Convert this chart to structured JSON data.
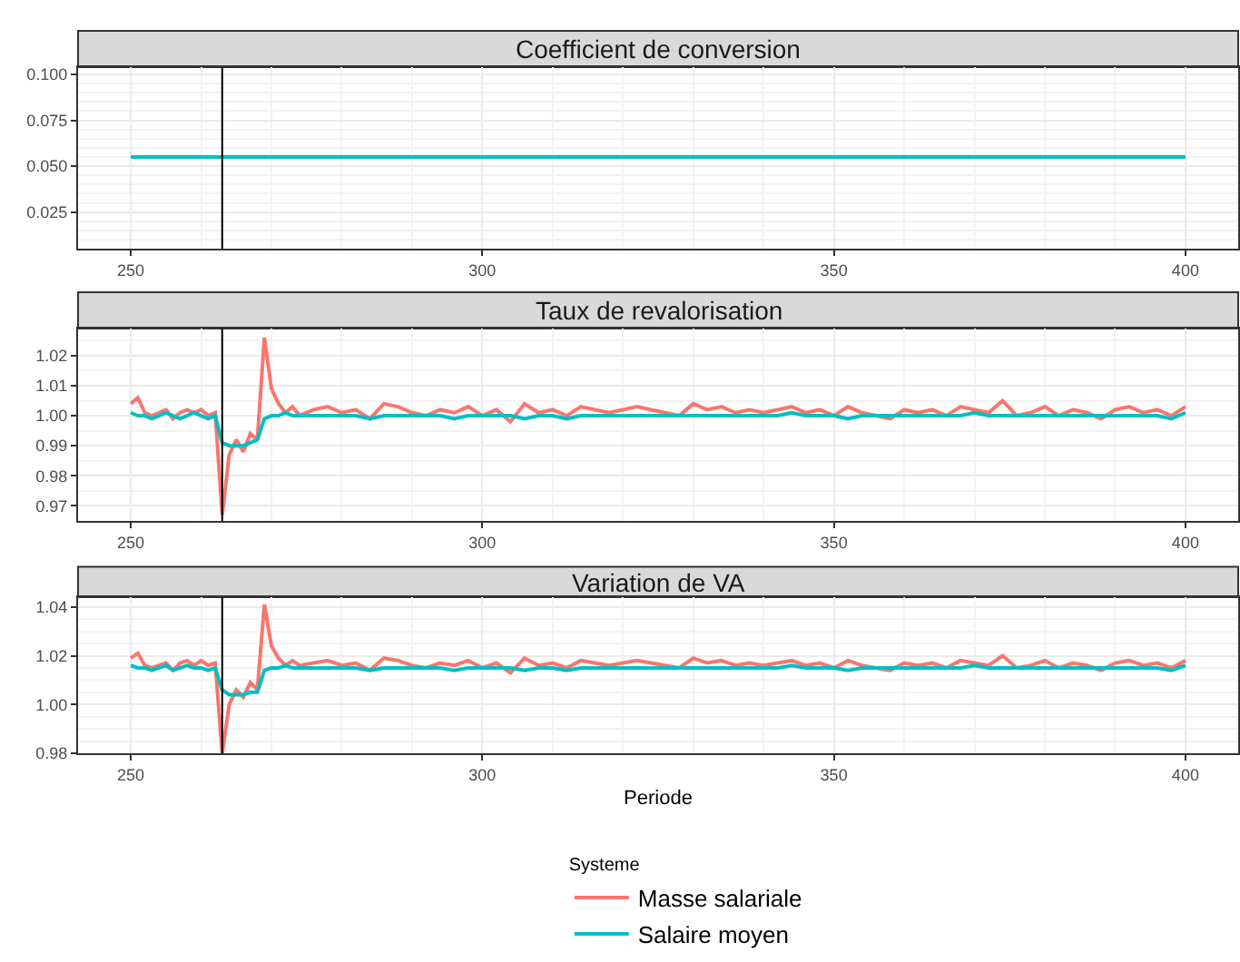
{
  "chart_data": [
    {
      "type": "line",
      "title": "Coefficient de conversion",
      "x": [
        250,
        400
      ],
      "xlim": [
        242.5,
        407.5
      ],
      "xticks": [
        250,
        300,
        350,
        400
      ],
      "ylim": [
        0.005,
        0.104
      ],
      "yticks": [
        {
          "value": 0.025,
          "label": "0.025"
        },
        {
          "value": 0.05,
          "label": "0.050"
        },
        {
          "value": 0.075,
          "label": "0.075"
        },
        {
          "value": 0.1,
          "label": "0.100"
        }
      ],
      "grid": true,
      "legend": false,
      "ref_lines": [
        {
          "axis": "x",
          "value": 263,
          "color": "#000000"
        }
      ],
      "series": [
        {
          "color": "#00bfc4",
          "values": [
            0.055,
            0.055
          ]
        }
      ]
    },
    {
      "type": "line",
      "title": "Taux de revalorisation",
      "x": [
        250,
        251,
        252,
        253,
        254,
        255,
        256,
        257,
        258,
        259,
        260,
        261,
        262,
        263,
        264,
        265,
        266,
        267,
        268,
        269,
        270,
        271,
        272,
        273,
        274,
        276,
        278,
        280,
        282,
        284,
        286,
        288,
        290,
        292,
        294,
        296,
        298,
        300,
        302,
        304,
        306,
        308,
        310,
        312,
        314,
        316,
        318,
        320,
        322,
        324,
        326,
        328,
        330,
        332,
        334,
        336,
        338,
        340,
        342,
        344,
        346,
        348,
        350,
        352,
        354,
        356,
        358,
        360,
        362,
        364,
        366,
        368,
        370,
        372,
        374,
        376,
        378,
        380,
        382,
        384,
        386,
        388,
        390,
        392,
        394,
        396,
        398,
        400
      ],
      "xlim": [
        242.5,
        407.5
      ],
      "xticks": [
        250,
        300,
        350,
        400
      ],
      "ylim": [
        0.965,
        1.029
      ],
      "yticks": [
        {
          "value": 0.97,
          "label": "0.97"
        },
        {
          "value": 0.98,
          "label": "0.98"
        },
        {
          "value": 0.99,
          "label": "0.99"
        },
        {
          "value": 1,
          "label": "1.00"
        },
        {
          "value": 1.01,
          "label": "1.01"
        },
        {
          "value": 1.02,
          "label": "1.02"
        }
      ],
      "grid": true,
      "legend": false,
      "ref_lines": [
        {
          "axis": "x",
          "value": 263,
          "color": "#000000"
        }
      ],
      "series": [
        {
          "color": "#f8766d",
          "values": [
            1.004,
            1.006,
            1.001,
            1.0,
            1.001,
            1.002,
            0.999,
            1.001,
            1.002,
            1.001,
            1.002,
            1.0,
            1.001,
            0.967,
            0.987,
            0.992,
            0.988,
            0.994,
            0.992,
            1.026,
            1.009,
            1.004,
            1.001,
            1.003,
            1.0,
            1.002,
            1.003,
            1.001,
            1.002,
            0.999,
            1.004,
            1.003,
            1.001,
            1.0,
            1.002,
            1.001,
            1.003,
            1.0,
            1.002,
            0.998,
            1.004,
            1.001,
            1.002,
            1.0,
            1.003,
            1.002,
            1.001,
            1.002,
            1.003,
            1.002,
            1.001,
            1.0,
            1.004,
            1.002,
            1.003,
            1.001,
            1.002,
            1.001,
            1.002,
            1.003,
            1.001,
            1.002,
            1.0,
            1.003,
            1.001,
            1.0,
            0.999,
            1.002,
            1.001,
            1.002,
            1.0,
            1.003,
            1.002,
            1.001,
            1.005,
            1.0,
            1.001,
            1.003,
            1.0,
            1.002,
            1.001,
            0.999,
            1.002,
            1.003,
            1.001,
            1.002,
            1.0,
            1.003
          ]
        },
        {
          "color": "#00bfc4",
          "values": [
            1.001,
            1.0,
            1.0,
            0.999,
            1.0,
            1.001,
            1.0,
            0.999,
            1.0,
            1.001,
            1.0,
            0.999,
            1.0,
            0.991,
            0.99,
            0.99,
            0.99,
            0.991,
            0.992,
            0.999,
            1.0,
            1.0,
            1.001,
            1.0,
            1.0,
            1.0,
            1.0,
            1.0,
            1.0,
            0.999,
            1.0,
            1.0,
            1.0,
            1.0,
            1.0,
            0.999,
            1.0,
            1.0,
            1.0,
            1.0,
            0.999,
            1.0,
            1.0,
            0.999,
            1.0,
            1.0,
            1.0,
            1.0,
            1.0,
            1.0,
            1.0,
            1.0,
            1.0,
            1.0,
            1.0,
            1.0,
            1.0,
            1.0,
            1.0,
            1.001,
            1.0,
            1.0,
            1.0,
            0.999,
            1.0,
            1.0,
            1.0,
            1.0,
            1.0,
            1.0,
            1.0,
            1.0,
            1.001,
            1.0,
            1.0,
            1.0,
            1.0,
            1.0,
            1.0,
            1.0,
            1.0,
            1.0,
            1.0,
            1.0,
            1.0,
            1.0,
            0.999,
            1.001
          ]
        }
      ]
    },
    {
      "type": "line",
      "title": "Variation de VA",
      "xlabel": "Periode",
      "legend_title": "Systeme",
      "x": [
        250,
        251,
        252,
        253,
        254,
        255,
        256,
        257,
        258,
        259,
        260,
        261,
        262,
        263,
        264,
        265,
        266,
        267,
        268,
        269,
        270,
        271,
        272,
        273,
        274,
        276,
        278,
        280,
        282,
        284,
        286,
        288,
        290,
        292,
        294,
        296,
        298,
        300,
        302,
        304,
        306,
        308,
        310,
        312,
        314,
        316,
        318,
        320,
        322,
        324,
        326,
        328,
        330,
        332,
        334,
        336,
        338,
        340,
        342,
        344,
        346,
        348,
        350,
        352,
        354,
        356,
        358,
        360,
        362,
        364,
        366,
        368,
        370,
        372,
        374,
        376,
        378,
        380,
        382,
        384,
        386,
        388,
        390,
        392,
        394,
        396,
        398,
        400
      ],
      "xlim": [
        242.5,
        407.5
      ],
      "xticks": [
        250,
        300,
        350,
        400
      ],
      "ylim": [
        0.98,
        1.044
      ],
      "yticks": [
        {
          "value": 0.98,
          "label": "0.98"
        },
        {
          "value": 1,
          "label": "1.00"
        },
        {
          "value": 1.02,
          "label": "1.02"
        },
        {
          "value": 1.04,
          "label": "1.04"
        }
      ],
      "grid": true,
      "legend": "bottom",
      "ref_lines": [
        {
          "axis": "x",
          "value": 263,
          "color": "#000000"
        }
      ],
      "series": [
        {
          "name": "Masse salariale",
          "color": "#f8766d",
          "values": [
            1.019,
            1.021,
            1.016,
            1.015,
            1.016,
            1.017,
            1.014,
            1.017,
            1.018,
            1.016,
            1.018,
            1.016,
            1.017,
            0.98,
            1.0,
            1.006,
            1.003,
            1.009,
            1.006,
            1.041,
            1.024,
            1.019,
            1.016,
            1.018,
            1.016,
            1.017,
            1.018,
            1.016,
            1.017,
            1.014,
            1.019,
            1.018,
            1.016,
            1.015,
            1.017,
            1.016,
            1.018,
            1.015,
            1.017,
            1.013,
            1.019,
            1.016,
            1.017,
            1.015,
            1.018,
            1.017,
            1.016,
            1.017,
            1.018,
            1.017,
            1.016,
            1.015,
            1.019,
            1.017,
            1.018,
            1.016,
            1.017,
            1.016,
            1.017,
            1.018,
            1.016,
            1.017,
            1.015,
            1.018,
            1.016,
            1.015,
            1.014,
            1.017,
            1.016,
            1.017,
            1.015,
            1.018,
            1.017,
            1.016,
            1.02,
            1.015,
            1.016,
            1.018,
            1.015,
            1.017,
            1.016,
            1.014,
            1.017,
            1.018,
            1.016,
            1.017,
            1.015,
            1.018
          ]
        },
        {
          "name": "Salaire moyen",
          "color": "#00bfc4",
          "values": [
            1.016,
            1.015,
            1.015,
            1.014,
            1.015,
            1.016,
            1.014,
            1.015,
            1.016,
            1.015,
            1.015,
            1.014,
            1.015,
            1.006,
            1.004,
            1.004,
            1.004,
            1.005,
            1.005,
            1.014,
            1.015,
            1.015,
            1.016,
            1.015,
            1.015,
            1.015,
            1.015,
            1.015,
            1.015,
            1.014,
            1.015,
            1.015,
            1.015,
            1.015,
            1.015,
            1.014,
            1.015,
            1.015,
            1.015,
            1.015,
            1.014,
            1.015,
            1.015,
            1.014,
            1.015,
            1.015,
            1.015,
            1.015,
            1.015,
            1.015,
            1.015,
            1.015,
            1.015,
            1.015,
            1.015,
            1.015,
            1.015,
            1.015,
            1.015,
            1.016,
            1.015,
            1.015,
            1.015,
            1.014,
            1.015,
            1.015,
            1.015,
            1.015,
            1.015,
            1.015,
            1.015,
            1.015,
            1.016,
            1.015,
            1.015,
            1.015,
            1.015,
            1.015,
            1.015,
            1.015,
            1.015,
            1.015,
            1.015,
            1.015,
            1.015,
            1.015,
            1.014,
            1.016
          ]
        }
      ]
    }
  ]
}
